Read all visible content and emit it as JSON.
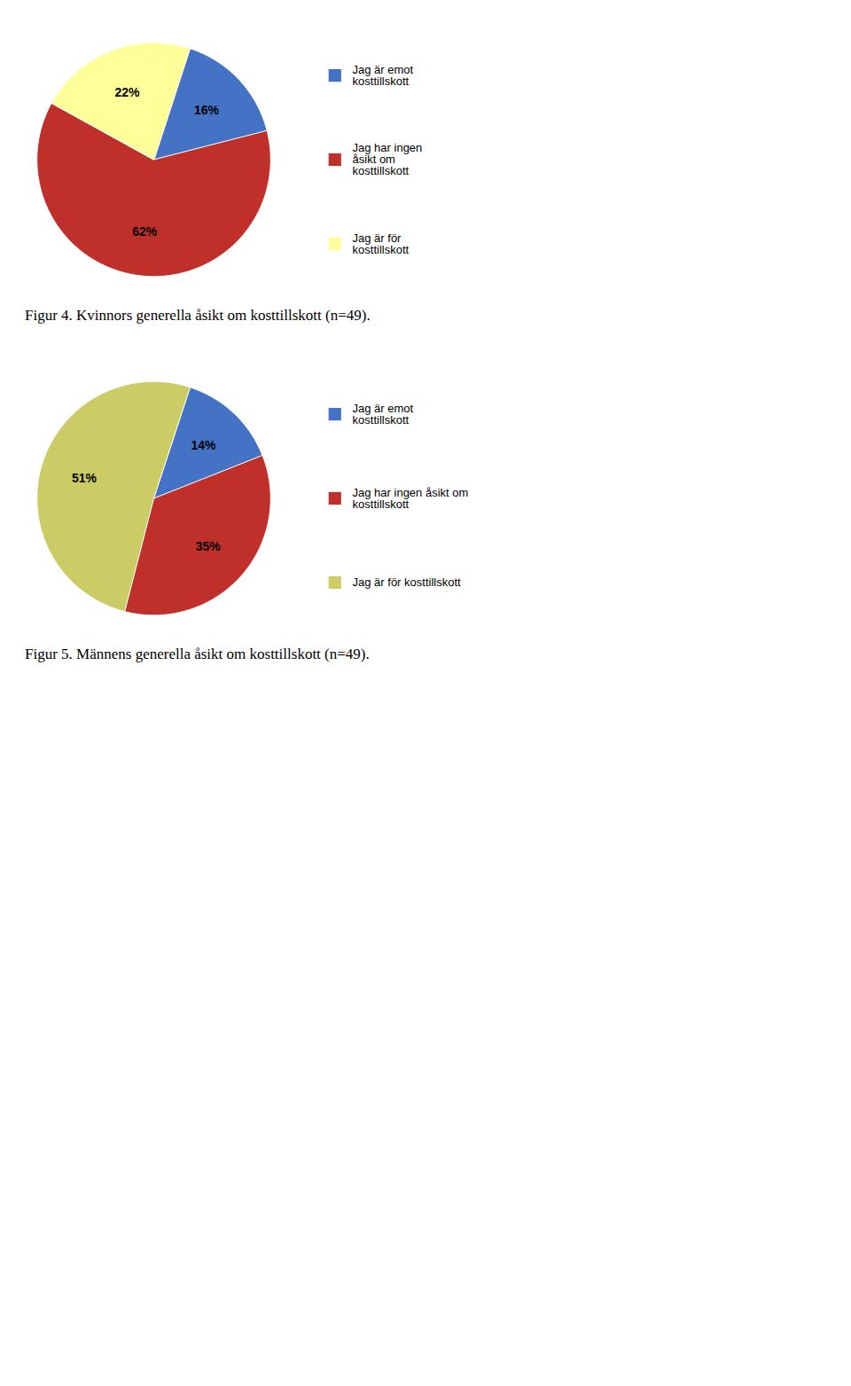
{
  "chart_data": [
    {
      "type": "pie",
      "title": "Figur 4. Kvinnors generella åsikt om kosttillskott (n=49).",
      "categories": [
        "Jag är emot\nkosttillskott",
        "Jag har ingen\nåsikt om\nkosttillskott",
        "Jag är för\nkosttillskott"
      ],
      "values": [
        16,
        62,
        22
      ],
      "value_labels": [
        "16%",
        "62%",
        "22%"
      ],
      "colors": [
        "#4472C4",
        "#C0302A",
        "#FFFF99"
      ],
      "data_labels": true,
      "legend": "right"
    },
    {
      "type": "pie",
      "title": "Figur 5. Männens generella åsikt om kosttillskott (n=49).",
      "categories": [
        "Jag är emot\nkosttillskott",
        "Jag har ingen åsikt om\nkosttillskott",
        "Jag är för kosttillskott"
      ],
      "values": [
        14,
        35,
        51
      ],
      "value_labels": [
        "14%",
        "35%",
        "51%"
      ],
      "colors": [
        "#4472C4",
        "#C0302A",
        "#CCCC66"
      ],
      "data_labels": true,
      "legend": "right"
    }
  ]
}
